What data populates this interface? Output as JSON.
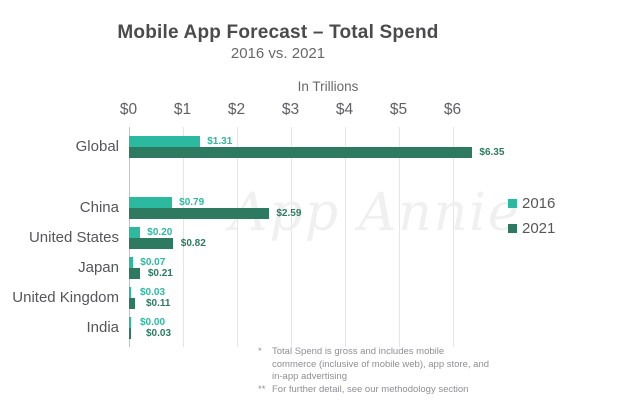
{
  "header": {
    "title": "Mobile App Forecast – Total Spend",
    "subtitle": "2016 vs. 2021",
    "axis_title": "In Trillions"
  },
  "chart_data": {
    "type": "bar",
    "orientation": "horizontal",
    "title": "Mobile App Forecast – Total Spend",
    "subtitle": "2016 vs. 2021",
    "units_label": "In Trillions",
    "categories": [
      "Global",
      "China",
      "United States",
      "Japan",
      "United Kingdom",
      "India"
    ],
    "series": [
      {
        "name": "2016",
        "color": "#2bbaa0",
        "values": [
          1.31,
          0.79,
          0.2,
          0.07,
          0.03,
          0.0
        ],
        "labels": [
          "$1.31",
          "$0.79",
          "$0.20",
          "$0.07",
          "$0.03",
          "$0.00"
        ]
      },
      {
        "name": "2021",
        "color": "#2e7a60",
        "values": [
          6.35,
          2.59,
          0.82,
          0.21,
          0.11,
          0.03
        ],
        "labels": [
          "$6.35",
          "$2.59",
          "$0.82",
          "$0.21",
          "$0.11",
          "$0.03"
        ]
      }
    ],
    "x_ticks": {
      "labels": [
        "$0",
        "$1",
        "$2",
        "$3",
        "$4",
        "$5",
        "$6"
      ],
      "values": [
        0,
        1,
        2,
        3,
        4,
        5,
        6
      ]
    },
    "xlim": [
      0,
      6.5
    ],
    "grid": "vertical-only",
    "legend_position": "right-middle"
  },
  "legend": {
    "items": [
      {
        "label": "2016",
        "color": "#2bbaa0"
      },
      {
        "label": "2021",
        "color": "#2e7a60"
      }
    ]
  },
  "watermark": {
    "text": "App Annie"
  },
  "footnotes": [
    {
      "marker": "*",
      "text": "Total Spend is gross and includes mobile commerce (inclusive of mobile web), app store, and in-app advertising"
    },
    {
      "marker": "**",
      "text": "For further detail, see our methodology section"
    }
  ],
  "colors": {
    "series_2016": "#2bbaa0",
    "series_2021": "#2e7a60",
    "title_text": "#4b4b4d",
    "secondary_text": "#68686c",
    "row_label_text": "#55565a",
    "gridline": "#e5e5e7",
    "axis_line": "#c3c3c7",
    "footnote_text": "#8f8f94",
    "watermark_text": "#f0f0f0",
    "background": "#ffffff"
  }
}
